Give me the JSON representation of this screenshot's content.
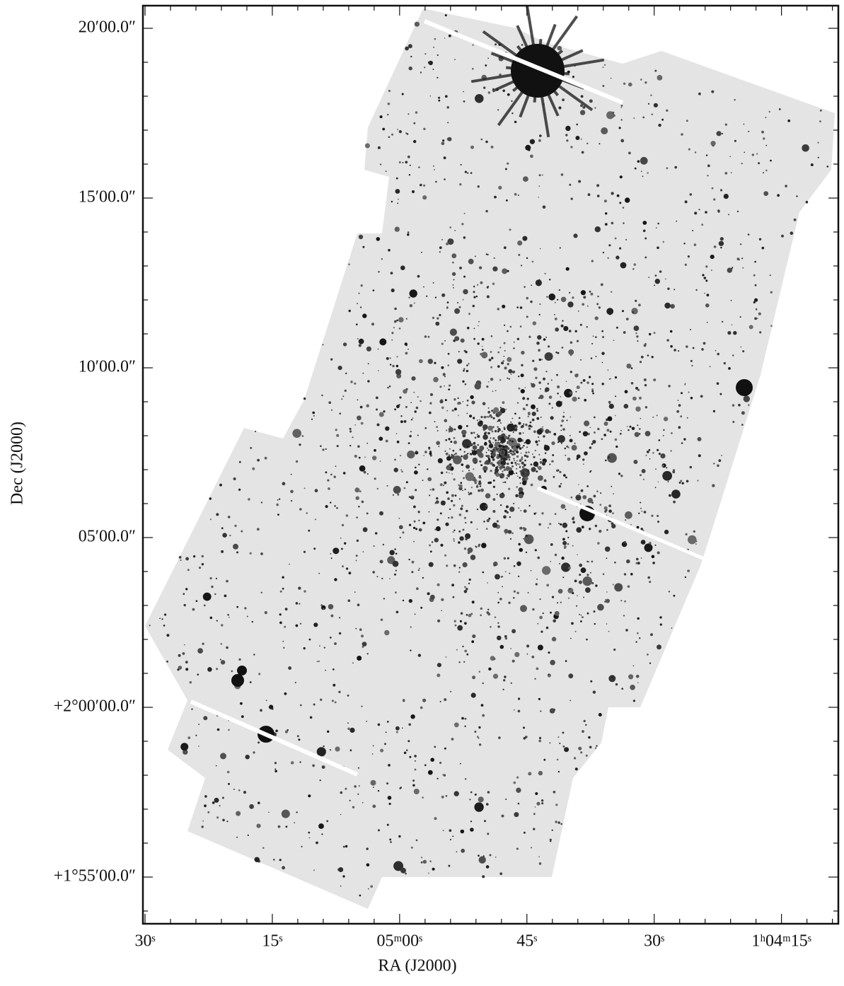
{
  "chart_data": {
    "type": "image",
    "x_label": "RA (J2000)",
    "y_label": "Dec (J2000)",
    "xlim": [
      3930.25,
      3848.3
    ],
    "ylim": [
      113.625,
      140.667
    ],
    "xticks": [
      {
        "value": 3930,
        "label": "30ˢ"
      },
      {
        "value": 3915,
        "label": "15ˢ"
      },
      {
        "value": 3900,
        "label": "05ᵐ00ˢ"
      },
      {
        "value": 3885,
        "label": "45ˢ"
      },
      {
        "value": 3870,
        "label": "30ˢ"
      },
      {
        "value": 3855,
        "label": "1ʰ04ᵐ15ˢ"
      }
    ],
    "yticks": [
      {
        "value": 140,
        "label": "20′00.0″"
      },
      {
        "value": 135,
        "label": "15′00.0″"
      },
      {
        "value": 130,
        "label": "10′00.0″"
      },
      {
        "value": 125,
        "label": "05′00.0″"
      },
      {
        "value": 120,
        "label": "+2°00′00.0″"
      },
      {
        "value": 115,
        "label": "+1°55′00.0″"
      }
    ],
    "xminorticks": [
      3927,
      3924,
      3921,
      3918,
      3912,
      3909,
      3906,
      3903,
      3897,
      3894,
      3891,
      3888,
      3882,
      3879,
      3876,
      3873,
      3867,
      3864,
      3861,
      3858,
      3852,
      3849
    ],
    "yminorticks": [
      114,
      116,
      117,
      118,
      119,
      121,
      122,
      123,
      124,
      126,
      127,
      128,
      129,
      131,
      132,
      133,
      134,
      136,
      137,
      138,
      139
    ]
  }
}
